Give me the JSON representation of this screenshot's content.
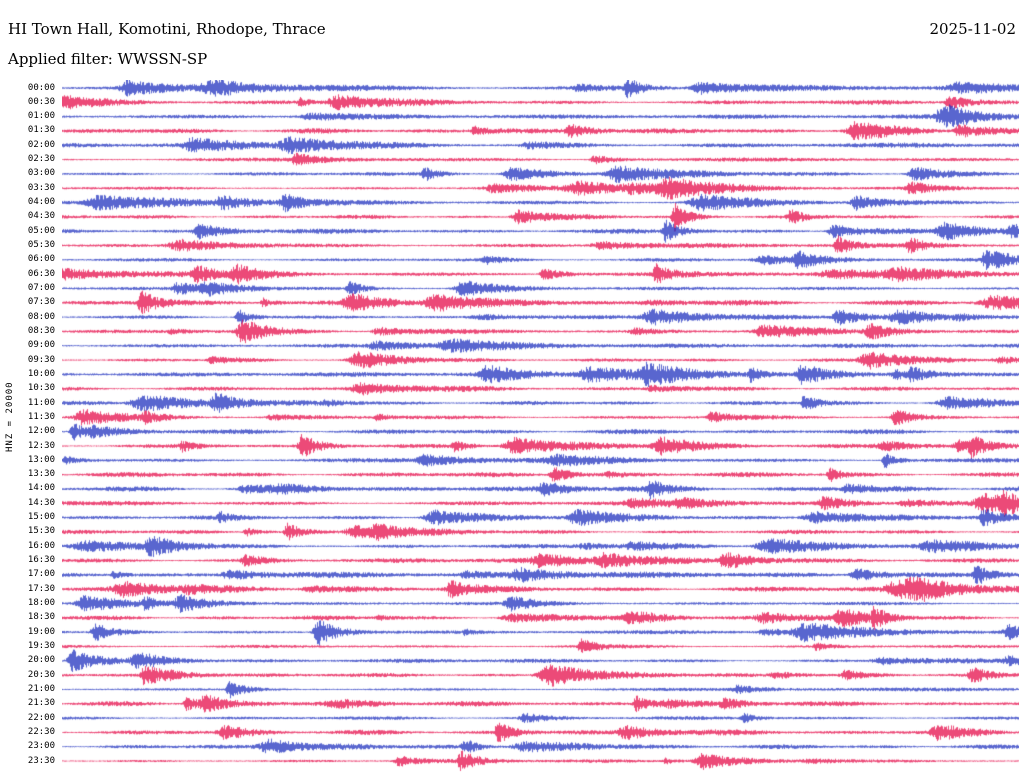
{
  "header": {
    "title": "HI Town Hall, Komotini, Rhodope, Thrace",
    "date": "2025-11-02",
    "filter_line": "Applied filter: WWSSN-SP"
  },
  "axis": {
    "channel_label": "HNZ = 20000"
  },
  "chart_data": {
    "type": "line",
    "variant": "helicorder-seismogram",
    "station_title": "HI Town Hall, Komotini, Rhodope, Thrace",
    "date": "2025-11-02",
    "applied_filter": "WWSSN-SP",
    "channel_scale_label": "HNZ = 20000",
    "minutes_per_row": 30,
    "grid": false,
    "legend_position": "none",
    "palette": {
      "blue": "#2233bf",
      "red": "#e60d4b"
    },
    "seed": 20251102,
    "rows": [
      {
        "time": "00:00",
        "color": "blue"
      },
      {
        "time": "00:30",
        "color": "red"
      },
      {
        "time": "01:00",
        "color": "blue"
      },
      {
        "time": "01:30",
        "color": "red"
      },
      {
        "time": "02:00",
        "color": "blue"
      },
      {
        "time": "02:30",
        "color": "red"
      },
      {
        "time": "03:00",
        "color": "blue"
      },
      {
        "time": "03:30",
        "color": "red"
      },
      {
        "time": "04:00",
        "color": "blue"
      },
      {
        "time": "04:30",
        "color": "red"
      },
      {
        "time": "05:00",
        "color": "blue"
      },
      {
        "time": "05:30",
        "color": "red"
      },
      {
        "time": "06:00",
        "color": "blue"
      },
      {
        "time": "06:30",
        "color": "red"
      },
      {
        "time": "07:00",
        "color": "blue"
      },
      {
        "time": "07:30",
        "color": "red"
      },
      {
        "time": "08:00",
        "color": "blue"
      },
      {
        "time": "08:30",
        "color": "red"
      },
      {
        "time": "09:00",
        "color": "blue"
      },
      {
        "time": "09:30",
        "color": "red"
      },
      {
        "time": "10:00",
        "color": "blue"
      },
      {
        "time": "10:30",
        "color": "red"
      },
      {
        "time": "11:00",
        "color": "blue"
      },
      {
        "time": "11:30",
        "color": "red"
      },
      {
        "time": "12:00",
        "color": "blue"
      },
      {
        "time": "12:30",
        "color": "red"
      },
      {
        "time": "13:00",
        "color": "blue"
      },
      {
        "time": "13:30",
        "color": "red"
      },
      {
        "time": "14:00",
        "color": "blue"
      },
      {
        "time": "14:30",
        "color": "red"
      },
      {
        "time": "15:00",
        "color": "blue"
      },
      {
        "time": "15:30",
        "color": "red"
      },
      {
        "time": "16:00",
        "color": "blue"
      },
      {
        "time": "16:30",
        "color": "red"
      },
      {
        "time": "17:00",
        "color": "blue"
      },
      {
        "time": "17:30",
        "color": "red"
      },
      {
        "time": "18:00",
        "color": "blue"
      },
      {
        "time": "18:30",
        "color": "red"
      },
      {
        "time": "19:00",
        "color": "blue"
      },
      {
        "time": "19:30",
        "color": "red"
      },
      {
        "time": "20:00",
        "color": "blue"
      },
      {
        "time": "20:30",
        "color": "red"
      },
      {
        "time": "21:00",
        "color": "blue"
      },
      {
        "time": "21:30",
        "color": "red"
      },
      {
        "time": "22:00",
        "color": "blue"
      },
      {
        "time": "22:30",
        "color": "red"
      },
      {
        "time": "23:00",
        "color": "blue"
      },
      {
        "time": "23:30",
        "color": "red"
      }
    ],
    "events": [
      {
        "row": 9,
        "x": 0.64,
        "amp": 13
      },
      {
        "row": 10,
        "x": 0.63,
        "amp": 10
      },
      {
        "row": 11,
        "x": 0.81,
        "amp": 9
      },
      {
        "row": 11,
        "x": 0.885,
        "amp": 7
      },
      {
        "row": 13,
        "x": 0.62,
        "amp": 9
      },
      {
        "row": 14,
        "x": 0.3,
        "amp": 7
      },
      {
        "row": 22,
        "x": 0.775,
        "amp": 8
      },
      {
        "row": 25,
        "x": 0.95,
        "amp": 9
      },
      {
        "row": 28,
        "x": 0.615,
        "amp": 7
      },
      {
        "row": 31,
        "x": 0.235,
        "amp": 8
      },
      {
        "row": 33,
        "x": 0.69,
        "amp": 7
      },
      {
        "row": 34,
        "x": 0.955,
        "amp": 9
      },
      {
        "row": 41,
        "x": 0.085,
        "amp": 9
      },
      {
        "row": 41,
        "x": 0.95,
        "amp": 8
      },
      {
        "row": 43,
        "x": 0.13,
        "amp": 7
      },
      {
        "row": 43,
        "x": 0.6,
        "amp": 7
      },
      {
        "row": 45,
        "x": 0.455,
        "amp": 10
      },
      {
        "row": 46,
        "x": 0.42,
        "amp": 7
      }
    ]
  }
}
